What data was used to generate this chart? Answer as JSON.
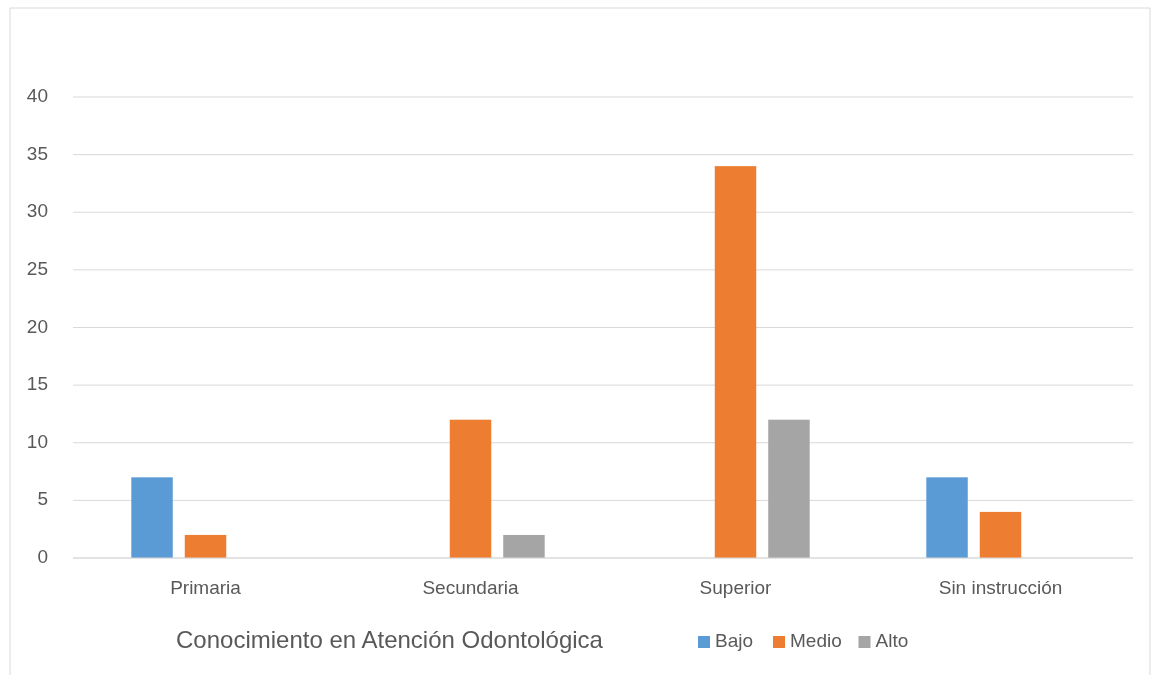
{
  "chart_data": {
    "type": "bar",
    "categories": [
      "Primaria",
      "Secundaria",
      "Superior",
      "Sin instrucción"
    ],
    "series": [
      {
        "name": "Bajo",
        "color": "#5b9bd5",
        "values": [
          7,
          0,
          0,
          7
        ]
      },
      {
        "name": "Medio",
        "color": "#ed7d31",
        "values": [
          2,
          12,
          34,
          4
        ]
      },
      {
        "name": "Alto",
        "color": "#a5a5a5",
        "values": [
          0,
          2,
          12,
          0
        ]
      }
    ],
    "ylim": [
      0,
      40
    ],
    "yticks": [
      0,
      5,
      10,
      15,
      20,
      25,
      30,
      35,
      40
    ],
    "grid": "y",
    "legend": "bottom",
    "legend_title": "Conocimiento en Atención Odontológica"
  }
}
